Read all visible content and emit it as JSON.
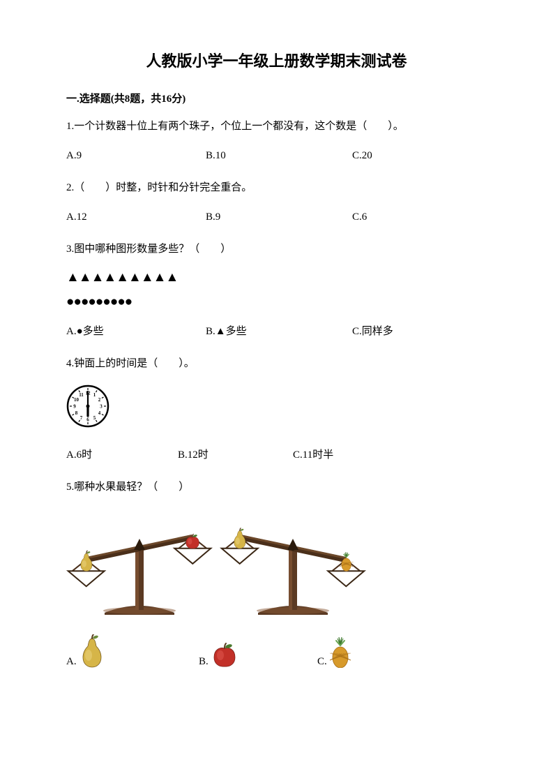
{
  "title": "人教版小学一年级上册数学期末测试卷",
  "section1": {
    "header": "一.选择题(共8题，共16分)"
  },
  "q1": {
    "text": "1.一个计数器十位上有两个珠子，个位上一个都没有，这个数是（　　）。",
    "a": "A.9",
    "b": "B.10",
    "c": "C.20"
  },
  "q2": {
    "text": "2.（　　）时整，时针和分针完全重合。",
    "a": "A.12",
    "b": "B.9",
    "c": "C.6"
  },
  "q3": {
    "text": "3.图中哪种图形数量多些？（　　）",
    "triangles_count": 9,
    "circles_count": 9,
    "triangle_char": "▲",
    "circle_char": "●",
    "a": "A.●多些",
    "b": "B.▲多些",
    "c": "C.同样多"
  },
  "q4": {
    "text": "4.钟面上的时间是（　　）。",
    "a": "A.6时",
    "b": "B.12时",
    "c": "C.11时半",
    "clock": {
      "size": 62,
      "border_color": "#000000",
      "bg": "#ffffff",
      "tick_color": "#000000",
      "numerals": [
        "12",
        "1",
        "2",
        "3",
        "4",
        "5",
        "6",
        "7",
        "8",
        "9",
        "10",
        "11"
      ],
      "hour_hand_angle": 180,
      "minute_hand_angle": 0,
      "hand_color": "#000000",
      "numeral_fontsize": 7
    }
  },
  "q5": {
    "text": "5.哪种水果最轻？（　　）",
    "a": "A.",
    "b": "B.",
    "c": "C.",
    "scale": {
      "stand_color": "#5b3a23",
      "stand_highlight": "#8a5a38",
      "beam_color": "#4a2f1a",
      "beam_highlight": "#7a5232",
      "pan_stroke": "#3a2614",
      "pan_fill": "#ffffff",
      "pivot_color": "#2b1b0c"
    },
    "fruits": {
      "pear": {
        "body": "#d6b548",
        "body_light": "#e8d17a",
        "stem": "#5a3d20",
        "leaf": "#6b8b3a"
      },
      "apple": {
        "body": "#c23028",
        "body_light": "#e0584f",
        "stem": "#5a3d20",
        "leaf": "#4a7a2f"
      },
      "pineapple": {
        "body": "#d79a2b",
        "body_dark": "#a66d16",
        "crown": "#3f7a2f",
        "crown_light": "#66a34f"
      }
    },
    "scale_left": {
      "left_fruit": "pear",
      "right_fruit": "apple",
      "tilt_deg": -12
    },
    "scale_right": {
      "left_fruit": "pear",
      "right_fruit": "pineapple",
      "tilt_deg": 12
    }
  }
}
